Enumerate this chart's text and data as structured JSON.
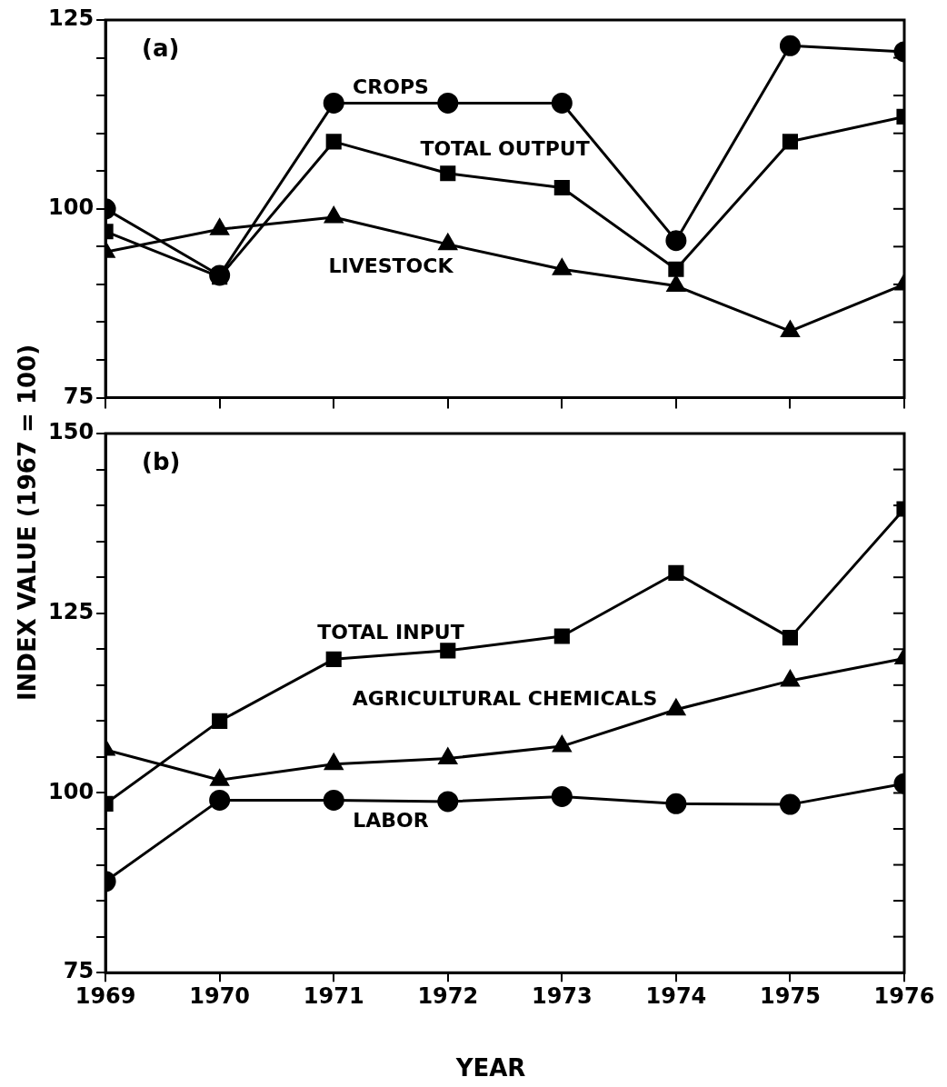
{
  "chart_data": [
    {
      "type": "line",
      "title": "(a)",
      "ylabel": "INDEX VALUE (1967 = 100)",
      "x": [
        1969,
        1970,
        1971,
        1972,
        1973,
        1974,
        1975,
        1976
      ],
      "xlim": [
        1969,
        1976
      ],
      "xticks": [
        1969,
        1970,
        1971,
        1972,
        1973,
        1974,
        1975,
        1976
      ],
      "ylim": [
        75,
        125
      ],
      "yticks": [
        75,
        {
          "value": 80,
          "label": null
        },
        {
          "value": 85,
          "label": null
        },
        {
          "value": 90,
          "label": null
        },
        {
          "value": 95,
          "label": null
        },
        100,
        {
          "value": 105,
          "label": null
        },
        {
          "value": 110,
          "label": null
        },
        {
          "value": 115,
          "label": null
        },
        {
          "value": 120,
          "label": null
        },
        125
      ],
      "tick_labels": "y",
      "grid": false,
      "legend": false,
      "series": [
        {
          "name": "CROPS",
          "color": "#000000",
          "marker": "circle",
          "values": [
            100,
            91.2,
            114,
            114,
            114,
            95.8,
            121.6,
            120.8
          ]
        },
        {
          "name": "TOTAL OUTPUT",
          "color": "#000000",
          "marker": "square",
          "values": [
            97,
            91,
            108.9,
            104.7,
            102.8,
            92,
            108.9,
            112.2
          ]
        },
        {
          "name": "LIVESTOCK",
          "color": "#000000",
          "marker": "triangle",
          "values": [
            94.3,
            97.3,
            98.9,
            95.3,
            92,
            89.8,
            83.8,
            90
          ]
        }
      ]
    },
    {
      "type": "line",
      "title": "(b)",
      "xlabel": "YEAR",
      "x": [
        1969,
        1970,
        1971,
        1972,
        1973,
        1974,
        1975,
        1976
      ],
      "xlim": [
        1969,
        1976
      ],
      "xticks": [
        1969,
        1970,
        1971,
        1972,
        1973,
        1974,
        1975,
        1976
      ],
      "ylim": [
        75,
        150
      ],
      "yticks": [
        75,
        {
          "value": 80,
          "label": null
        },
        {
          "value": 85,
          "label": null
        },
        {
          "value": 90,
          "label": null
        },
        {
          "value": 95,
          "label": null
        },
        100,
        {
          "value": 105,
          "label": null
        },
        {
          "value": 110,
          "label": null
        },
        {
          "value": 115,
          "label": null
        },
        {
          "value": 120,
          "label": null
        },
        125,
        {
          "value": 130,
          "label": null
        },
        {
          "value": 135,
          "label": null
        },
        {
          "value": 140,
          "label": null
        },
        {
          "value": 145,
          "label": null
        },
        150
      ],
      "grid": false,
      "legend": false,
      "series": [
        {
          "name": "TOTAL INPUT",
          "color": "#000000",
          "marker": "square",
          "values": [
            98.5,
            110,
            118.6,
            119.8,
            121.8,
            130.6,
            121.6,
            139.5
          ]
        },
        {
          "name": "AGRICULTURAL CHEMICALS",
          "color": "#000000",
          "marker": "triangle",
          "values": [
            106,
            101.8,
            104,
            104.8,
            106.5,
            111.6,
            115.6,
            118.7
          ]
        },
        {
          "name": "LABOR",
          "color": "#000000",
          "marker": "circle",
          "values": [
            87.7,
            99,
            99,
            98.8,
            99.5,
            98.5,
            98.4,
            101.3
          ]
        }
      ]
    }
  ]
}
